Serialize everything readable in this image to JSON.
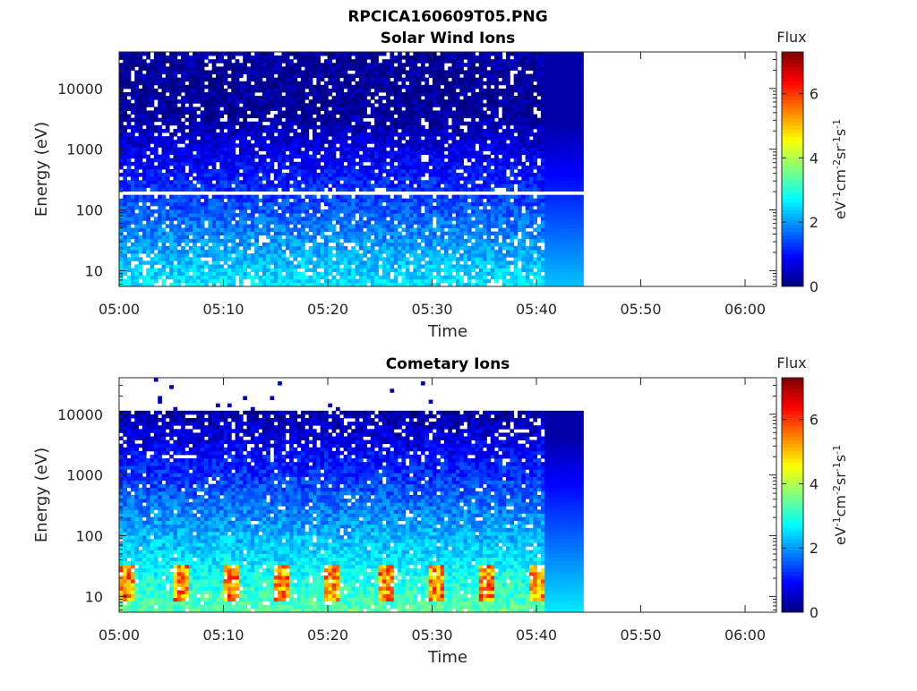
{
  "figure": {
    "title": "RPCICA160609T05.PNG"
  },
  "chart_data": [
    {
      "type": "heatmap",
      "title": "Solar Wind Ions",
      "xlabel": "Time",
      "ylabel": "Energy (eV)",
      "y_scale": "log",
      "x_ticks": [
        "05:00",
        "05:10",
        "05:20",
        "05:30",
        "05:40",
        "05:50",
        "06:00"
      ],
      "x_range": [
        "05:00",
        "06:03"
      ],
      "data_time_range": [
        "05:00",
        "05:44.5"
      ],
      "y_ticks": [
        10,
        100,
        1000,
        10000
      ],
      "y_range": [
        5.5,
        40000
      ],
      "colorbar": {
        "title": "Flux",
        "label": "eV-1cm-2sr-1s-1",
        "ticks": [
          0,
          2,
          4,
          6
        ],
        "range": [
          0,
          7.3
        ],
        "colormap": "jet"
      },
      "grid": false
    },
    {
      "type": "heatmap",
      "title": "Cometary Ions",
      "xlabel": "Time",
      "ylabel": "Energy (eV)",
      "y_scale": "log",
      "x_ticks": [
        "05:00",
        "05:10",
        "05:20",
        "05:30",
        "05:40",
        "05:50",
        "06:00"
      ],
      "x_range": [
        "05:00",
        "06:03"
      ],
      "data_time_range": [
        "05:00",
        "05:44.5"
      ],
      "y_ticks": [
        10,
        100,
        1000,
        10000
      ],
      "y_range": [
        5.5,
        40000
      ],
      "colorbar": {
        "title": "Flux",
        "label": "eV-1cm-2sr-1s-1",
        "ticks": [
          0,
          2,
          4,
          6
        ],
        "range": [
          0,
          7.3
        ],
        "colormap": "jet"
      },
      "grid": false
    }
  ]
}
